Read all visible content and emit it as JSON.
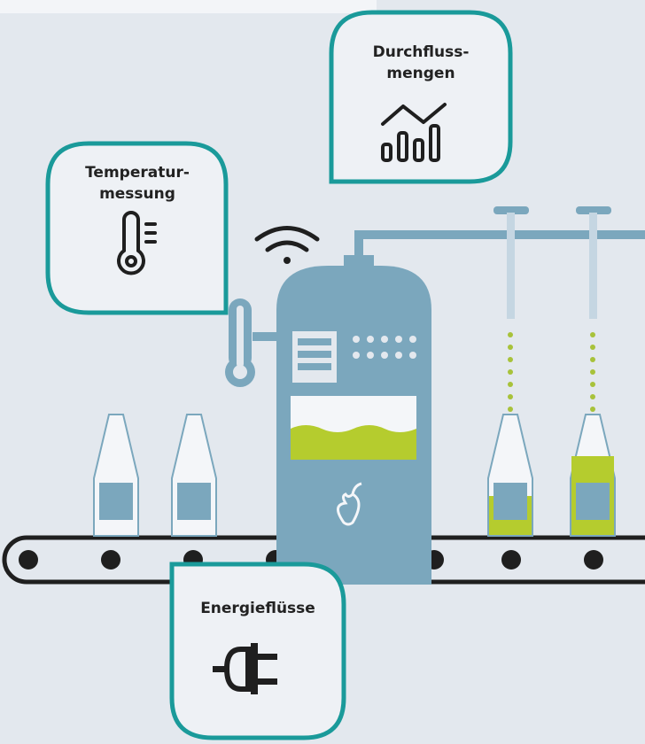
{
  "callouts": [
    {
      "lines": [
        "Durchfluss-",
        "mengen"
      ]
    },
    {
      "lines": [
        "Temperatur-",
        "messung"
      ]
    },
    {
      "lines": [
        "Energieflüsse"
      ]
    }
  ]
}
